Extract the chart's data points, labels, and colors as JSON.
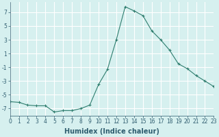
{
  "x": [
    0,
    1,
    2,
    3,
    4,
    5,
    6,
    7,
    8,
    9,
    10,
    11,
    12,
    13,
    14,
    15,
    16,
    17,
    18,
    19,
    20,
    21,
    22,
    23
  ],
  "y": [
    -6.0,
    -6.1,
    -6.5,
    -6.6,
    -6.6,
    -7.5,
    -7.3,
    -7.3,
    -7.0,
    -6.5,
    -3.5,
    -1.3,
    3.0,
    7.8,
    7.2,
    6.5,
    4.3,
    3.0,
    1.5,
    -0.5,
    -1.2,
    -2.2,
    -3.0,
    -3.8
  ],
  "line_color": "#2e7d6e",
  "marker": "+",
  "marker_size": 3,
  "bg_color": "#d6f0ef",
  "grid_color": "#ffffff",
  "xlabel": "Humidex (Indice chaleur)",
  "xlabel_fontsize": 7,
  "xlim": [
    0,
    23
  ],
  "ylim": [
    -8.0,
    8.5
  ],
  "yticks": [
    -7,
    -5,
    -3,
    -1,
    1,
    3,
    5,
    7
  ],
  "xticks": [
    0,
    1,
    2,
    3,
    4,
    5,
    6,
    7,
    8,
    9,
    10,
    11,
    12,
    13,
    14,
    15,
    16,
    17,
    18,
    19,
    20,
    21,
    22,
    23
  ],
  "tick_fontsize": 5.5,
  "label_color": "#2e5c6e"
}
